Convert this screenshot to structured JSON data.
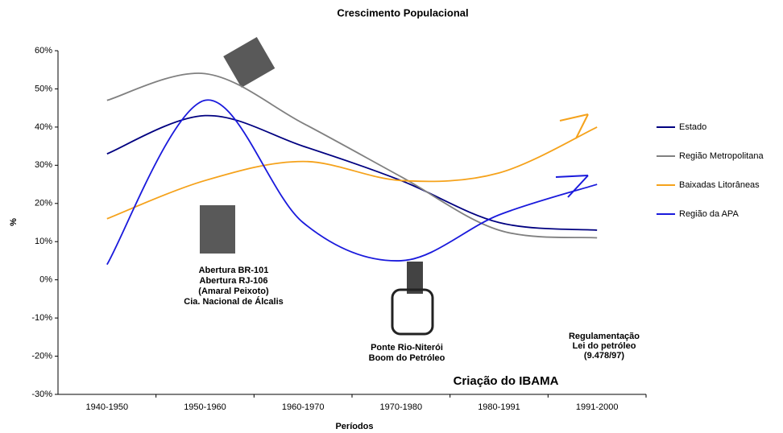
{
  "chart_data": {
    "type": "line",
    "title": "Crescimento Populacional",
    "x_label": "Períodos",
    "y_label": "%",
    "categories": [
      "1940-1950",
      "1950-1960",
      "1960-1970",
      "1970-1980",
      "1980-1991",
      "1991-2000"
    ],
    "series": [
      {
        "name": "Estado",
        "color": "#000080",
        "values": [
          33,
          43,
          35,
          26,
          15,
          13
        ]
      },
      {
        "name": "Região Metropolitana",
        "color": "#808080",
        "values": [
          47,
          54,
          41,
          27,
          13,
          11
        ]
      },
      {
        "name": "Baixadas Litorâneas",
        "color": "#f5a21b",
        "values": [
          16,
          26,
          31,
          26,
          28,
          40
        ]
      },
      {
        "name": "Região da APA",
        "color": "#1a1adc",
        "values": [
          4,
          47,
          15,
          5,
          17,
          25
        ]
      }
    ],
    "ylim": [
      -30,
      60
    ],
    "yticks": [
      {
        "value": -30,
        "label": "-30%"
      },
      {
        "value": -20,
        "label": "-20%"
      },
      {
        "value": -10,
        "label": "-10%"
      },
      {
        "value": 0,
        "label": "0%"
      },
      {
        "value": 10,
        "label": "10%"
      },
      {
        "value": 20,
        "label": "20%"
      },
      {
        "value": 30,
        "label": "30%"
      },
      {
        "value": 40,
        "label": "40%"
      },
      {
        "value": 50,
        "label": "50%"
      },
      {
        "value": 60,
        "label": "60%"
      }
    ],
    "legend": "right",
    "annotations": [
      [
        "Abertura BR-101",
        "Abertura RJ-106",
        "(Amaral Peixoto)",
        "Cia. Nacional de Álcalis"
      ],
      [
        "Ponte Rio-Niterói",
        "Boom do Petróleo"
      ],
      [
        "Regulamentação",
        "Lei do petróleo",
        "(9.478/97)"
      ],
      [
        "Criação do IBAMA"
      ]
    ]
  }
}
